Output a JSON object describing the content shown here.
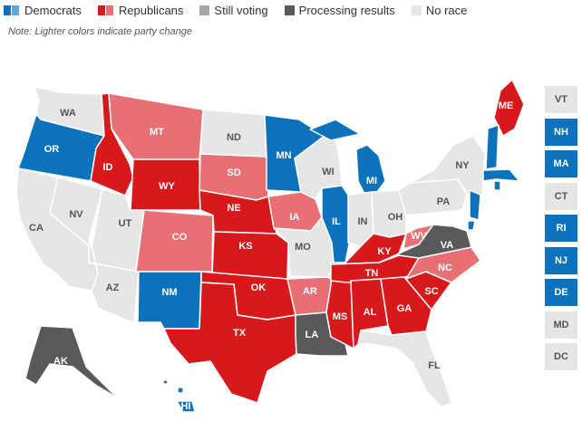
{
  "legend": [
    {
      "label": "Democrats",
      "colors": [
        "#0b72bb",
        "#5aa8dc"
      ]
    },
    {
      "label": "Republicans",
      "colors": [
        "#d7191c",
        "#e87075"
      ]
    },
    {
      "label": "Still voting",
      "colors": [
        "#a6a6a6"
      ]
    },
    {
      "label": "Processing results",
      "colors": [
        "#595959"
      ]
    },
    {
      "label": "No race",
      "colors": [
        "#e6e6e6"
      ]
    }
  ],
  "note": "Note: Lighter colors indicate party change",
  "status_colors": {
    "dem": "#0b72bb",
    "dem_change": "#5aa8dc",
    "rep": "#d7191c",
    "rep_change": "#e87075",
    "processing": "#595959",
    "none": "#e6e6e6"
  },
  "states": [
    {
      "abbr": "WA",
      "status": "none"
    },
    {
      "abbr": "OR",
      "status": "dem"
    },
    {
      "abbr": "CA",
      "status": "none"
    },
    {
      "abbr": "NV",
      "status": "none"
    },
    {
      "abbr": "ID",
      "status": "rep"
    },
    {
      "abbr": "MT",
      "status": "rep_change"
    },
    {
      "abbr": "WY",
      "status": "rep"
    },
    {
      "abbr": "UT",
      "status": "none"
    },
    {
      "abbr": "AZ",
      "status": "none"
    },
    {
      "abbr": "CO",
      "status": "rep_change"
    },
    {
      "abbr": "NM",
      "status": "dem"
    },
    {
      "abbr": "ND",
      "status": "none"
    },
    {
      "abbr": "SD",
      "status": "rep_change"
    },
    {
      "abbr": "NE",
      "status": "rep"
    },
    {
      "abbr": "KS",
      "status": "rep"
    },
    {
      "abbr": "OK",
      "status": "rep"
    },
    {
      "abbr": "TX",
      "status": "rep"
    },
    {
      "abbr": "MN",
      "status": "dem"
    },
    {
      "abbr": "IA",
      "status": "rep_change"
    },
    {
      "abbr": "MO",
      "status": "none"
    },
    {
      "abbr": "AR",
      "status": "rep_change"
    },
    {
      "abbr": "LA",
      "status": "processing"
    },
    {
      "abbr": "WI",
      "status": "none"
    },
    {
      "abbr": "IL",
      "status": "dem"
    },
    {
      "abbr": "MS",
      "status": "rep"
    },
    {
      "abbr": "MI",
      "status": "dem"
    },
    {
      "abbr": "IN",
      "status": "none"
    },
    {
      "abbr": "OH",
      "status": "none"
    },
    {
      "abbr": "KY",
      "status": "rep"
    },
    {
      "abbr": "TN",
      "status": "rep"
    },
    {
      "abbr": "AL",
      "status": "rep"
    },
    {
      "abbr": "GA",
      "status": "rep"
    },
    {
      "abbr": "FL",
      "status": "none"
    },
    {
      "abbr": "SC",
      "status": "rep"
    },
    {
      "abbr": "NC",
      "status": "rep_change"
    },
    {
      "abbr": "VA",
      "status": "processing"
    },
    {
      "abbr": "WV",
      "status": "rep_change"
    },
    {
      "abbr": "PA",
      "status": "none"
    },
    {
      "abbr": "NY",
      "status": "none"
    },
    {
      "abbr": "ME",
      "status": "rep"
    },
    {
      "abbr": "AK",
      "status": "processing"
    },
    {
      "abbr": "HI",
      "status": "dem"
    }
  ],
  "small_states": [
    {
      "abbr": "VT",
      "status": "none"
    },
    {
      "abbr": "NH",
      "status": "dem"
    },
    {
      "abbr": "MA",
      "status": "dem"
    },
    {
      "abbr": "CT",
      "status": "none"
    },
    {
      "abbr": "RI",
      "status": "dem"
    },
    {
      "abbr": "NJ",
      "status": "dem"
    },
    {
      "abbr": "DE",
      "status": "dem"
    },
    {
      "abbr": "MD",
      "status": "none"
    },
    {
      "abbr": "DC",
      "status": "none"
    }
  ]
}
